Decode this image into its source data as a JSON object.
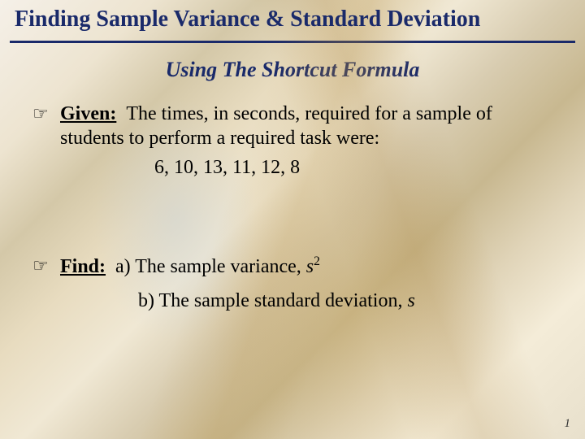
{
  "slide": {
    "title": "Finding Sample Variance & Standard Deviation",
    "subtitle": "Using The Shortcut Formula",
    "title_color": "#1a2a6a",
    "underline_color": "#1a2a6a",
    "body_text_color": "#000000",
    "footer_color": "#333333",
    "background_colors": [
      "#f5f0e8",
      "#ede4d0",
      "#d4c8a8",
      "#e8dcc0",
      "#c8b890"
    ],
    "title_fontsize": 28,
    "subtitle_fontsize": 26,
    "body_fontsize": 24,
    "font_family": "Times New Roman"
  },
  "given": {
    "label": "Given:",
    "text_before": "The times, in seconds, required for a sample of students to perform a required task were:",
    "values_display": "6,   10,   13,   11,   12,   8",
    "values": [
      6,
      10,
      13,
      11,
      12,
      8
    ]
  },
  "find": {
    "label": "Find:",
    "part_a_prefix": "a) The sample variance, ",
    "part_a_symbol": "s",
    "part_a_exponent": "2",
    "part_b_prefix": "b) The sample standard deviation, ",
    "part_b_symbol": "s"
  },
  "icons": {
    "pointing_hand": "☞"
  },
  "footer": {
    "page_number": "1"
  }
}
